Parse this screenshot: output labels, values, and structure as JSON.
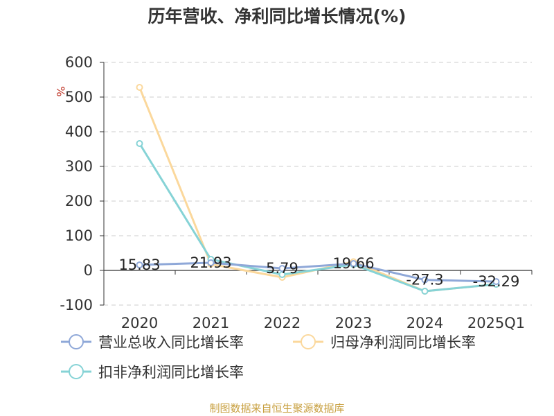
{
  "chart_data": {
    "type": "line",
    "title": "历年营收、净利同比增长情况(%)",
    "ylabel": "%",
    "xlabel": "",
    "categories": [
      "2020",
      "2021",
      "2022",
      "2023",
      "2024",
      "2025Q1"
    ],
    "ylim": [
      -100,
      600
    ],
    "yticks": [
      600,
      500,
      400,
      300,
      200,
      100,
      0,
      -100
    ],
    "grid": true,
    "legend_position": "bottom",
    "series": [
      {
        "name": "营业总收入同比增长率",
        "color": "#8fa8d8",
        "values": [
          15.83,
          21.93,
          5.79,
          19.66,
          -27.3,
          -32.29
        ],
        "labels": [
          "15.83",
          "21.93",
          "5.79",
          "19.66",
          "-27.3",
          "-32.29"
        ]
      },
      {
        "name": "归母净利润同比增长率",
        "color": "#fbd89c",
        "values": [
          528,
          18,
          -20,
          25,
          -60,
          -40
        ]
      },
      {
        "name": "扣非净利润同比增长率",
        "color": "#86d3d6",
        "values": [
          366,
          32,
          -12,
          17,
          -60,
          -40
        ]
      }
    ]
  },
  "source": "制图数据来自恒生聚源数据库"
}
